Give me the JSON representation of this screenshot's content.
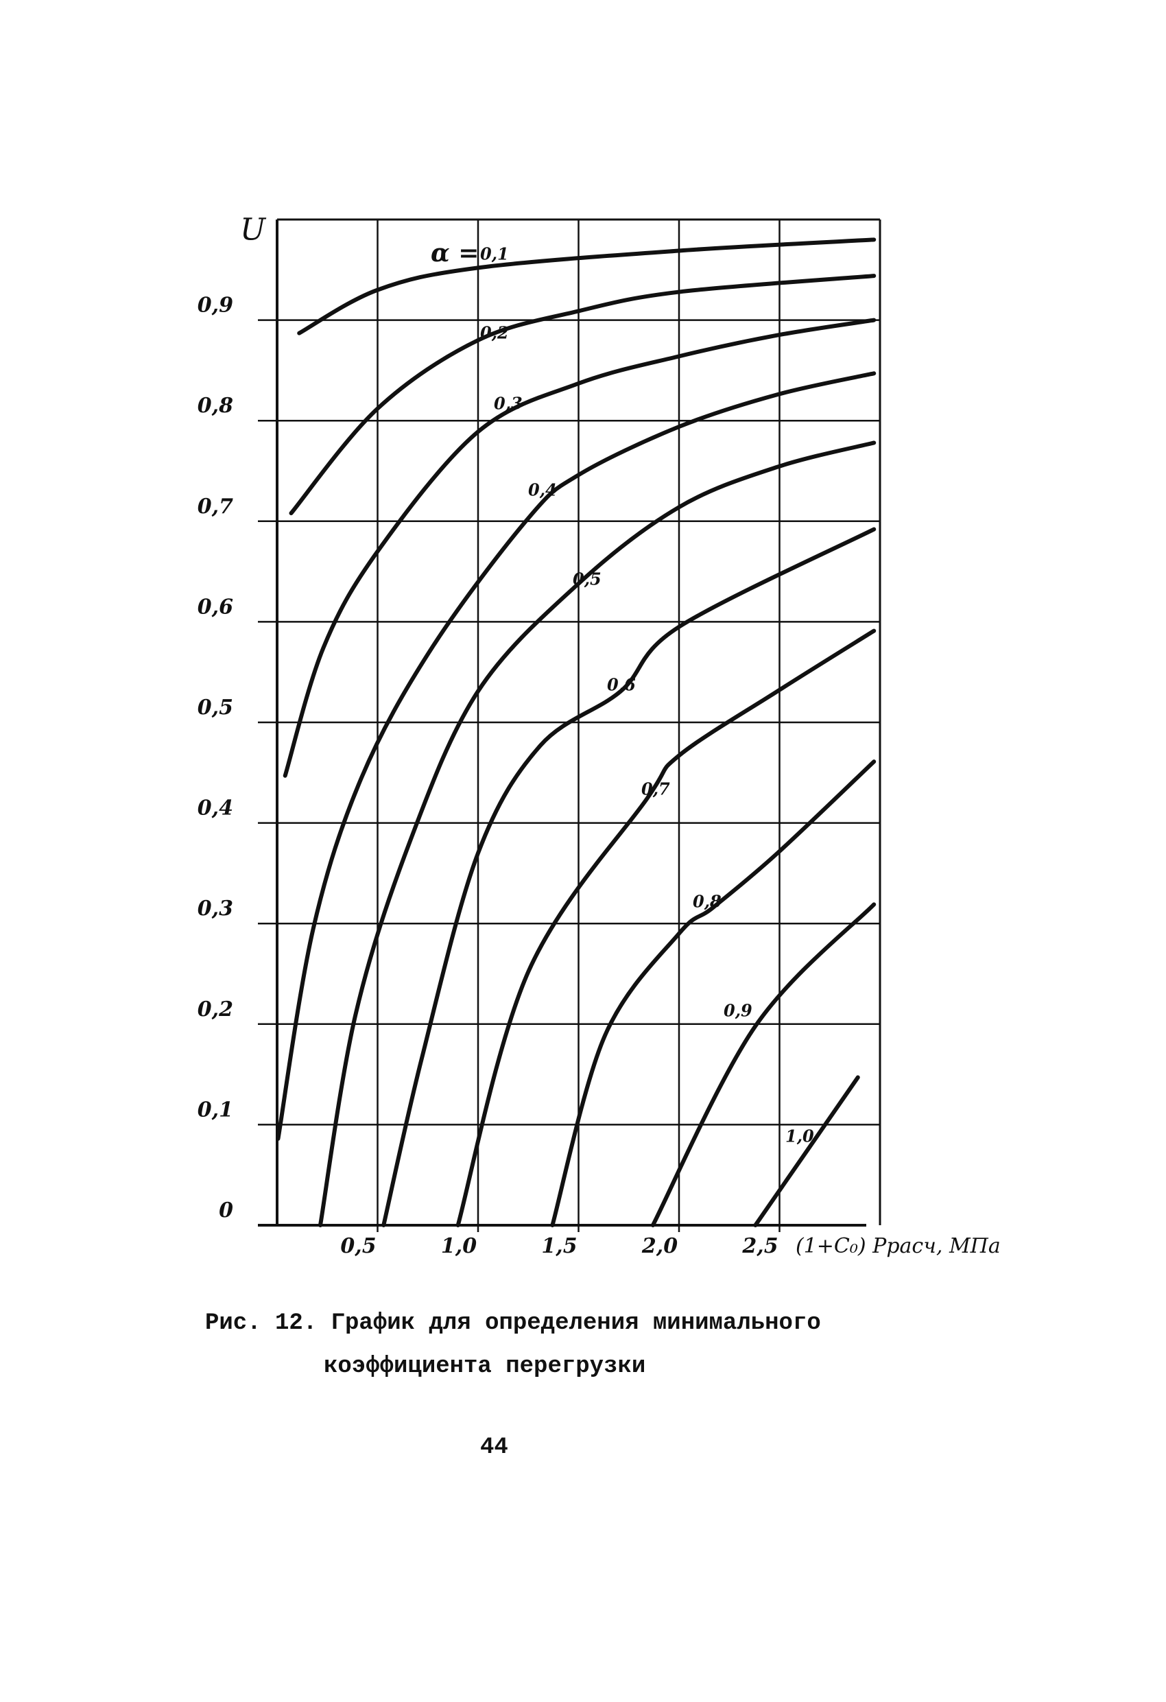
{
  "chart_data": {
    "type": "line",
    "y_label": "U",
    "x_label": "(1+C₀) Pрасч, МПа",
    "series_prefix": "α =",
    "xlim": [
      0,
      3
    ],
    "ylim": [
      0,
      1
    ],
    "xticks": [
      {
        "value": 0.5,
        "label": "0,5"
      },
      {
        "value": 1.0,
        "label": "1,0"
      },
      {
        "value": 1.5,
        "label": "1,5"
      },
      {
        "value": 2.0,
        "label": "2,0"
      },
      {
        "value": 2.5,
        "label": "2,5"
      }
    ],
    "yticks": [
      0,
      {
        "value": 0.1,
        "label": "0,1"
      },
      {
        "value": 0.2,
        "label": "0,2"
      },
      {
        "value": 0.3,
        "label": "0,3"
      },
      {
        "value": 0.4,
        "label": "0,4"
      },
      {
        "value": 0.5,
        "label": "0,5"
      },
      {
        "value": 0.6,
        "label": "0,6"
      },
      {
        "value": 0.7,
        "label": "0,7"
      },
      {
        "value": 0.8,
        "label": "0,8"
      },
      {
        "value": 0.9,
        "label": "0,9"
      }
    ],
    "grid": true,
    "color": "#111111",
    "series": [
      {
        "name": "0,1",
        "x": [
          0.11,
          0.5,
          1.0,
          2.0,
          2.97
        ],
        "values": [
          0.887,
          0.93,
          0.952,
          0.969,
          0.98
        ]
      },
      {
        "name": "0,2",
        "x": [
          0.07,
          0.5,
          1.0,
          1.5,
          2.0,
          2.97
        ],
        "values": [
          0.708,
          0.812,
          0.88,
          0.909,
          0.928,
          0.944
        ]
      },
      {
        "name": "0,3",
        "x": [
          0.04,
          0.23,
          0.5,
          1.0,
          1.5,
          2.0,
          2.49,
          2.97
        ],
        "values": [
          0.447,
          0.574,
          0.67,
          0.789,
          0.837,
          0.864,
          0.885,
          0.9
        ]
      },
      {
        "name": "0,4",
        "x": [
          0.005,
          0.18,
          0.42,
          0.77,
          1.25,
          1.5,
          2.0,
          2.49,
          2.97
        ],
        "values": [
          0.086,
          0.295,
          0.445,
          0.574,
          0.703,
          0.746,
          0.794,
          0.826,
          0.847
        ]
      },
      {
        "name": "0,5",
        "x": [
          0.215,
          0.39,
          0.66,
          1.0,
          1.5,
          2.0,
          2.49,
          2.97
        ],
        "values": [
          0,
          0.209,
          0.381,
          0.531,
          0.638,
          0.714,
          0.754,
          0.778
        ]
      },
      {
        "name": "0,6",
        "x": [
          0.53,
          0.72,
          1.0,
          1.31,
          1.71,
          2.0,
          2.97
        ],
        "values": [
          0,
          0.166,
          0.37,
          0.477,
          0.531,
          0.595,
          0.692
        ]
      },
      {
        "name": "0,7",
        "x": [
          0.9,
          1.25,
          1.84,
          2.0,
          2.49,
          2.97
        ],
        "values": [
          0,
          0.252,
          0.424,
          0.467,
          0.531,
          0.591
        ]
      },
      {
        "name": "0,8",
        "x": [
          1.37,
          1.63,
          2.0,
          2.17,
          2.49,
          2.97
        ],
        "values": [
          0,
          0.188,
          0.29,
          0.316,
          0.37,
          0.461
        ]
      },
      {
        "name": "0,9",
        "x": [
          1.87,
          2.38,
          2.97
        ],
        "values": [
          0,
          0.198,
          0.319
        ]
      },
      {
        "name": "1,0",
        "x": [
          2.38,
          2.89
        ],
        "values": [
          0,
          0.147
        ]
      }
    ]
  },
  "caption": {
    "line1": "Рис. 12. График для определения минимального",
    "line2": "коэффициента перегрузки"
  },
  "page_number": "44"
}
